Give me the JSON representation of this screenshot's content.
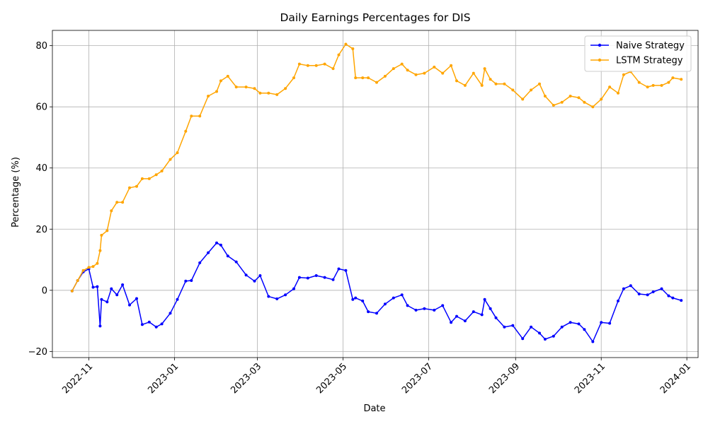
{
  "chart_data": {
    "type": "line",
    "title": "Daily Earnings Percentages for DIS",
    "xlabel": "Date",
    "ylabel": "Percentage (%)",
    "grid": true,
    "legend_position": "top-right",
    "xlim": [
      "2022-10-06",
      "2024-01-09"
    ],
    "ylim": [
      -22,
      85
    ],
    "x_ticks": [
      {
        "date": "2022-11-01",
        "label": "2022-11"
      },
      {
        "date": "2023-01-01",
        "label": "2023-01"
      },
      {
        "date": "2023-03-01",
        "label": "2023-03"
      },
      {
        "date": "2023-05-01",
        "label": "2023-05"
      },
      {
        "date": "2023-07-01",
        "label": "2023-07"
      },
      {
        "date": "2023-09-01",
        "label": "2023-09"
      },
      {
        "date": "2023-11-01",
        "label": "2023-11"
      },
      {
        "date": "2024-01-01",
        "label": "2024-01"
      }
    ],
    "y_ticks": [
      {
        "value": -20,
        "label": "−20"
      },
      {
        "value": 0,
        "label": "0"
      },
      {
        "value": 20,
        "label": "20"
      },
      {
        "value": 40,
        "label": "40"
      },
      {
        "value": 60,
        "label": "60"
      },
      {
        "value": 80,
        "label": "80"
      }
    ],
    "series": [
      {
        "name": "Naive Strategy",
        "color": "#0000ff",
        "x": [
          "2022-10-20",
          "2022-10-24",
          "2022-10-28",
          "2022-11-01",
          "2022-11-04",
          "2022-11-07",
          "2022-11-09",
          "2022-11-10",
          "2022-11-14",
          "2022-11-17",
          "2022-11-21",
          "2022-11-25",
          "2022-11-30",
          "2022-12-05",
          "2022-12-09",
          "2022-12-14",
          "2022-12-19",
          "2022-12-23",
          "2022-12-29",
          "2023-01-03",
          "2023-01-09",
          "2023-01-13",
          "2023-01-19",
          "2023-01-25",
          "2023-01-31",
          "2023-02-03",
          "2023-02-08",
          "2023-02-14",
          "2023-02-21",
          "2023-02-27",
          "2023-03-03",
          "2023-03-09",
          "2023-03-15",
          "2023-03-21",
          "2023-03-27",
          "2023-03-31",
          "2023-04-06",
          "2023-04-12",
          "2023-04-18",
          "2023-04-24",
          "2023-04-28",
          "2023-05-03",
          "2023-05-08",
          "2023-05-10",
          "2023-05-15",
          "2023-05-19",
          "2023-05-25",
          "2023-05-31",
          "2023-06-06",
          "2023-06-12",
          "2023-06-16",
          "2023-06-22",
          "2023-06-28",
          "2023-07-05",
          "2023-07-11",
          "2023-07-17",
          "2023-07-21",
          "2023-07-27",
          "2023-08-02",
          "2023-08-08",
          "2023-08-10",
          "2023-08-14",
          "2023-08-18",
          "2023-08-24",
          "2023-08-30",
          "2023-09-06",
          "2023-09-12",
          "2023-09-18",
          "2023-09-22",
          "2023-09-28",
          "2023-10-04",
          "2023-10-10",
          "2023-10-16",
          "2023-10-20",
          "2023-10-26",
          "2023-11-01",
          "2023-11-07",
          "2023-11-13",
          "2023-11-17",
          "2023-11-22",
          "2023-11-28",
          "2023-12-04",
          "2023-12-08",
          "2023-12-14",
          "2023-12-19",
          "2023-12-22",
          "2023-12-28"
        ],
        "values": [
          -0.2,
          3.2,
          6.0,
          7.0,
          1.0,
          1.2,
          -11.7,
          -3.0,
          -3.8,
          0.5,
          -1.5,
          1.8,
          -4.8,
          -2.7,
          -11.2,
          -10.4,
          -12.0,
          -11.0,
          -7.5,
          -3.0,
          3.0,
          3.2,
          9.0,
          12.3,
          15.5,
          14.8,
          11.2,
          9.3,
          5.0,
          3.0,
          4.8,
          -2.0,
          -2.8,
          -1.5,
          0.5,
          4.2,
          4.0,
          4.8,
          4.2,
          3.5,
          7.0,
          6.5,
          -3.0,
          -2.5,
          -3.5,
          -7.0,
          -7.5,
          -4.5,
          -2.5,
          -1.5,
          -5.0,
          -6.5,
          -6.0,
          -6.5,
          -5.0,
          -10.5,
          -8.5,
          -10.0,
          -7.0,
          -8.0,
          -3.0,
          -6.0,
          -9.0,
          -12.0,
          -11.5,
          -15.8,
          -12.0,
          -14.0,
          -16.0,
          -15.0,
          -12.0,
          -10.5,
          -11.0,
          -12.8,
          -16.8,
          -10.5,
          -10.8,
          -3.5,
          0.5,
          1.5,
          -1.2,
          -1.5,
          -0.5,
          0.5,
          -1.8,
          -2.5,
          -3.3
        ]
      },
      {
        "name": "LSTM Strategy",
        "color": "#ffa500",
        "x": [
          "2022-10-20",
          "2022-10-24",
          "2022-10-28",
          "2022-11-01",
          "2022-11-04",
          "2022-11-07",
          "2022-11-09",
          "2022-11-10",
          "2022-11-14",
          "2022-11-17",
          "2022-11-21",
          "2022-11-25",
          "2022-11-30",
          "2022-12-05",
          "2022-12-09",
          "2022-12-14",
          "2022-12-19",
          "2022-12-23",
          "2022-12-29",
          "2023-01-03",
          "2023-01-09",
          "2023-01-13",
          "2023-01-19",
          "2023-01-25",
          "2023-01-31",
          "2023-02-03",
          "2023-02-08",
          "2023-02-14",
          "2023-02-21",
          "2023-02-27",
          "2023-03-03",
          "2023-03-09",
          "2023-03-15",
          "2023-03-21",
          "2023-03-27",
          "2023-03-31",
          "2023-04-06",
          "2023-04-12",
          "2023-04-18",
          "2023-04-24",
          "2023-04-28",
          "2023-05-03",
          "2023-05-08",
          "2023-05-10",
          "2023-05-15",
          "2023-05-19",
          "2023-05-25",
          "2023-05-31",
          "2023-06-06",
          "2023-06-12",
          "2023-06-16",
          "2023-06-22",
          "2023-06-28",
          "2023-07-05",
          "2023-07-11",
          "2023-07-17",
          "2023-07-21",
          "2023-07-27",
          "2023-08-02",
          "2023-08-08",
          "2023-08-10",
          "2023-08-14",
          "2023-08-18",
          "2023-08-24",
          "2023-08-30",
          "2023-09-06",
          "2023-09-12",
          "2023-09-18",
          "2023-09-22",
          "2023-09-28",
          "2023-10-04",
          "2023-10-10",
          "2023-10-16",
          "2023-10-20",
          "2023-10-26",
          "2023-11-01",
          "2023-11-07",
          "2023-11-13",
          "2023-11-17",
          "2023-11-22",
          "2023-11-28",
          "2023-12-04",
          "2023-12-08",
          "2023-12-14",
          "2023-12-19",
          "2023-12-22",
          "2023-12-28"
        ],
        "values": [
          -0.2,
          3.2,
          6.5,
          7.5,
          7.8,
          8.8,
          13.0,
          18.0,
          19.5,
          26.0,
          28.8,
          28.8,
          33.5,
          34.0,
          36.5,
          36.5,
          37.8,
          39.0,
          42.8,
          45.0,
          52.0,
          57.0,
          57.0,
          63.5,
          65.0,
          68.5,
          70.0,
          66.5,
          66.5,
          66.0,
          64.5,
          64.5,
          64.0,
          66.0,
          69.5,
          74.0,
          73.5,
          73.5,
          74.0,
          72.5,
          77.0,
          80.5,
          79.0,
          69.5,
          69.5,
          69.5,
          68.0,
          70.0,
          72.5,
          74.0,
          72.0,
          70.5,
          71.0,
          73.0,
          71.0,
          73.5,
          68.5,
          67.0,
          71.0,
          67.0,
          72.5,
          69.0,
          67.5,
          67.5,
          65.5,
          62.5,
          65.5,
          67.5,
          63.5,
          60.5,
          61.5,
          63.5,
          63.0,
          61.5,
          60.0,
          62.5,
          66.5,
          64.5,
          70.5,
          71.5,
          68.0,
          66.5,
          67.0,
          67.0,
          68.0,
          69.5,
          69.0
        ]
      }
    ]
  }
}
